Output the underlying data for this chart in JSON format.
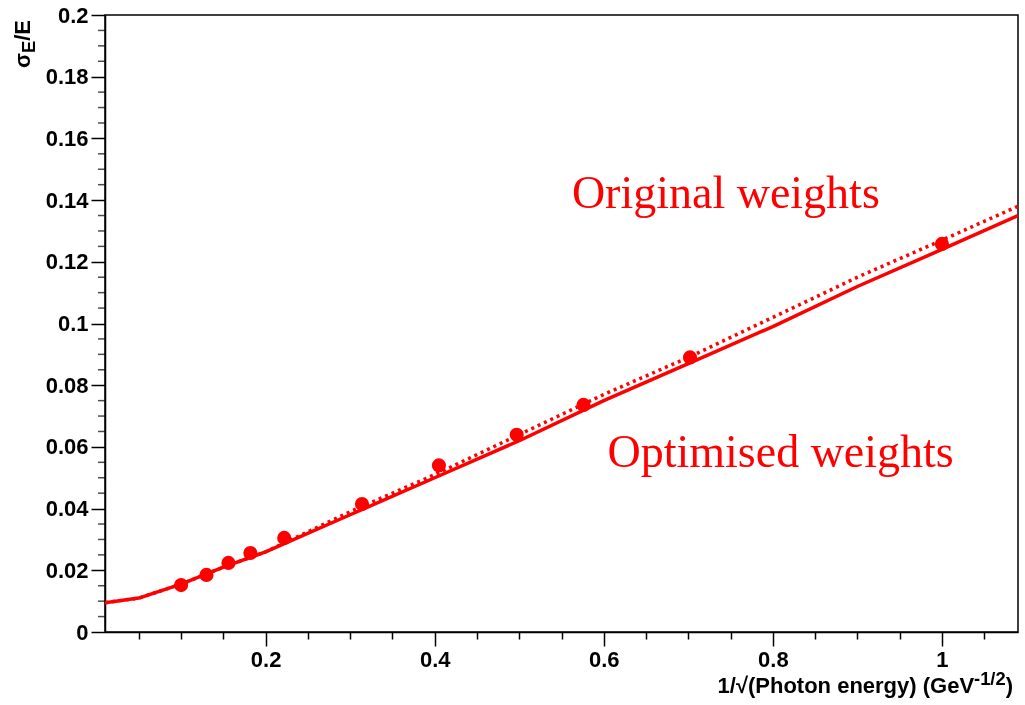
{
  "chart_data": {
    "type": "line",
    "xlabel": "1/√(Photon energy) (GeV$^{-1/2}$)",
    "ylabel": "σ$_{E}$/E",
    "xlim": [
      0.01,
      1.09
    ],
    "ylim": [
      0,
      0.2
    ],
    "xticks": [
      {
        "value": 0.05,
        "label": null
      },
      {
        "value": 0.1,
        "label": null
      },
      {
        "value": 0.15,
        "label": null
      },
      0.2,
      {
        "value": 0.25,
        "label": null
      },
      {
        "value": 0.3,
        "label": null
      },
      {
        "value": 0.35,
        "label": null
      },
      0.4,
      {
        "value": 0.45,
        "label": null
      },
      {
        "value": 0.5,
        "label": null
      },
      {
        "value": 0.55,
        "label": null
      },
      0.6,
      {
        "value": 0.65,
        "label": null
      },
      {
        "value": 0.7,
        "label": null
      },
      {
        "value": 0.75,
        "label": null
      },
      0.8,
      {
        "value": 0.85,
        "label": null
      },
      {
        "value": 0.9,
        "label": null
      },
      {
        "value": 0.95,
        "label": null
      },
      1,
      {
        "value": 1.05,
        "label": null
      }
    ],
    "yticks": [
      0,
      {
        "value": 0.005,
        "label": null
      },
      {
        "value": 0.01,
        "label": null
      },
      {
        "value": 0.015,
        "label": null
      },
      0.02,
      {
        "value": 0.025,
        "label": null
      },
      {
        "value": 0.03,
        "label": null
      },
      {
        "value": 0.035,
        "label": null
      },
      0.04,
      {
        "value": 0.045,
        "label": null
      },
      {
        "value": 0.05,
        "label": null
      },
      {
        "value": 0.055,
        "label": null
      },
      0.06,
      {
        "value": 0.065,
        "label": null
      },
      {
        "value": 0.07,
        "label": null
      },
      {
        "value": 0.075,
        "label": null
      },
      0.08,
      {
        "value": 0.085,
        "label": null
      },
      {
        "value": 0.09,
        "label": null
      },
      {
        "value": 0.095,
        "label": null
      },
      0.1,
      {
        "value": 0.105,
        "label": null
      },
      {
        "value": 0.11,
        "label": null
      },
      {
        "value": 0.115,
        "label": null
      },
      0.12,
      {
        "value": 0.125,
        "label": null
      },
      {
        "value": 0.13,
        "label": null
      },
      {
        "value": 0.135,
        "label": null
      },
      0.14,
      {
        "value": 0.145,
        "label": null
      },
      {
        "value": 0.15,
        "label": null
      },
      {
        "value": 0.155,
        "label": null
      },
      0.16,
      {
        "value": 0.165,
        "label": null
      },
      {
        "value": 0.17,
        "label": null
      },
      {
        "value": 0.175,
        "label": null
      },
      0.18,
      {
        "value": 0.185,
        "label": null
      },
      {
        "value": 0.19,
        "label": null
      },
      {
        "value": 0.195,
        "label": null
      },
      0.2
    ],
    "grid": false,
    "series": [
      {
        "name": "Original weights",
        "type": "line",
        "line_style": "dotted",
        "color": "#ff0000",
        "x": [
          0.01,
          0.05,
          0.1,
          0.15,
          0.2,
          0.3,
          0.4,
          0.5,
          0.6,
          0.7,
          0.8,
          0.9,
          1.0,
          1.09
        ],
        "values": [
          0.0095,
          0.011,
          0.0155,
          0.021,
          0.026,
          0.039,
          0.051,
          0.064,
          0.077,
          0.089,
          0.102,
          0.115,
          0.127,
          0.138
        ]
      },
      {
        "name": "Optimised weights",
        "type": "line",
        "line_style": "solid",
        "color": "#ff0000",
        "x": [
          0.01,
          0.05,
          0.1,
          0.15,
          0.2,
          0.3,
          0.4,
          0.5,
          0.6,
          0.7,
          0.8,
          0.9,
          1.0,
          1.09
        ],
        "values": [
          0.0095,
          0.011,
          0.0155,
          0.021,
          0.026,
          0.038,
          0.05,
          0.062,
          0.075,
          0.087,
          0.099,
          0.112,
          0.124,
          0.135
        ]
      },
      {
        "type": "scatter",
        "marker": "circle",
        "color": "#ff0000",
        "x": [
          0.1,
          0.13,
          0.156,
          0.182,
          0.222,
          0.314,
          0.405,
          0.497,
          0.576,
          0.702,
          1.0
        ],
        "values": [
          0.0152,
          0.0185,
          0.0224,
          0.0256,
          0.0305,
          0.0415,
          0.054,
          0.0639,
          0.0736,
          0.089,
          0.1258
        ]
      }
    ]
  }
}
